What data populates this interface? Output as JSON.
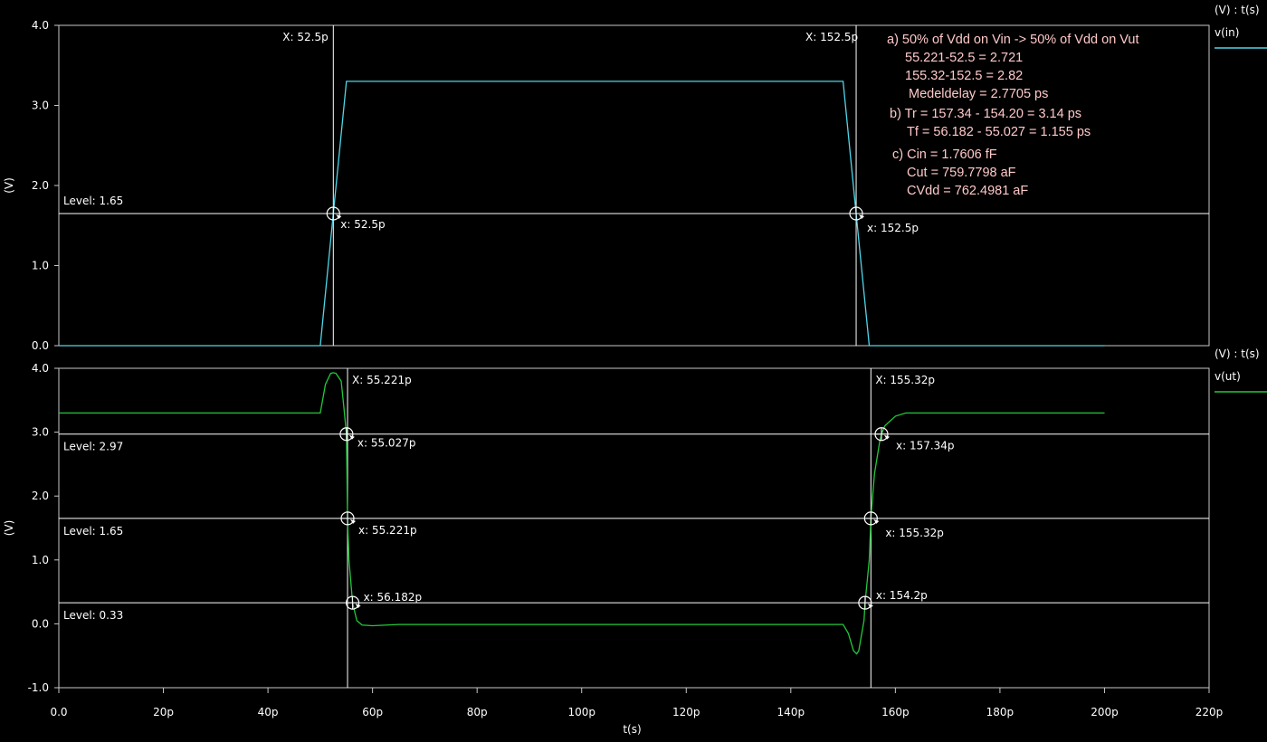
{
  "chart_data": [
    {
      "type": "line",
      "id": "top",
      "unit_label": "(V) : t(s)",
      "ylabel": "(V)",
      "ylim": [
        0.0,
        4.0
      ],
      "yticks": [
        "0.0",
        "1.0",
        "2.0",
        "3.0",
        "4.0"
      ],
      "xlim": [
        0,
        220
      ],
      "grid": false,
      "legend_position": "right",
      "series": [
        {
          "name": "v(in)",
          "color": "#4fd6e8",
          "x": [
            0,
            50,
            52.5,
            55,
            150,
            152.5,
            155,
            200
          ],
          "y": [
            0,
            0,
            1.65,
            3.3,
            3.3,
            1.65,
            0,
            0
          ]
        }
      ],
      "level_lines": [
        {
          "label": "Level: 1.65",
          "value": 1.65
        }
      ],
      "cursors": [
        {
          "x": 52.5,
          "label": "X: 52.5p"
        },
        {
          "x": 152.5,
          "label": "X: 152.5p"
        }
      ],
      "markers": [
        {
          "x": 52.5,
          "y": 1.65,
          "label": "x: 52.5p"
        },
        {
          "x": 152.5,
          "y": 1.65,
          "label": "x: 152.5p"
        }
      ],
      "annotations": [
        "a) 50% of Vdd on Vin -> 50% of Vdd on Vut",
        "55.221-52.5 = 2.721",
        "155.32-152.5 = 2.82",
        "Medeldelay = 2.7705 ps",
        "b) Tr = 157.34 - 154.20 = 3.14 ps",
        "Tf = 56.182 - 55.027 = 1.155 ps",
        "c) Cin = 1.7606 fF",
        "Cut = 759.7798 aF",
        "CVdd = 762.4981 aF"
      ]
    },
    {
      "type": "line",
      "id": "bottom",
      "unit_label": "(V) : t(s)",
      "ylabel": "(V)",
      "xlabel": "t(s)",
      "ylim": [
        -1.0,
        4.0
      ],
      "yticks": [
        "-1.0",
        "0.0",
        "1.0",
        "2.0",
        "3.0",
        "4.0"
      ],
      "xlim": [
        0,
        220
      ],
      "xticks": [
        "0.0",
        "20p",
        "40p",
        "60p",
        "80p",
        "100p",
        "120p",
        "140p",
        "160p",
        "180p",
        "200p",
        "220p"
      ],
      "grid": false,
      "legend_position": "right",
      "series": [
        {
          "name": "v(ut)",
          "color": "#22c83a",
          "x": [
            0,
            50,
            51,
            52,
            52.5,
            53,
            54,
            54.5,
            55,
            55.221,
            55.5,
            56.182,
            57,
            58,
            60,
            65,
            150,
            151,
            152,
            152.6,
            153,
            154,
            154.2,
            155,
            155.32,
            156,
            157,
            157.34,
            158,
            160,
            162,
            165,
            200
          ],
          "y": [
            3.3,
            3.3,
            3.75,
            3.92,
            3.93,
            3.92,
            3.8,
            3.4,
            2.97,
            1.65,
            1.0,
            0.33,
            0.05,
            -0.02,
            -0.03,
            -0.01,
            -0.01,
            -0.15,
            -0.42,
            -0.47,
            -0.42,
            0.05,
            0.33,
            1.0,
            1.65,
            2.35,
            2.85,
            2.97,
            3.1,
            3.25,
            3.3,
            3.3,
            3.3
          ]
        }
      ],
      "level_lines": [
        {
          "label": "Level: 2.97",
          "value": 2.97
        },
        {
          "label": "Level: 1.65",
          "value": 1.65
        },
        {
          "label": "Level: 0.33",
          "value": 0.33
        }
      ],
      "cursors": [
        {
          "x": 55.221,
          "label": "X: 55.221p"
        },
        {
          "x": 155.32,
          "label": "X: 155.32p"
        }
      ],
      "markers": [
        {
          "x": 55.027,
          "y": 2.97,
          "label": "x: 55.027p"
        },
        {
          "x": 55.221,
          "y": 1.65,
          "label": "x: 55.221p"
        },
        {
          "x": 56.182,
          "y": 0.33,
          "label": "x: 56.182p"
        },
        {
          "x": 157.34,
          "y": 2.97,
          "label": "x: 157.34p"
        },
        {
          "x": 155.32,
          "y": 1.65,
          "label": "x: 155.32p"
        },
        {
          "x": 154.2,
          "y": 0.33,
          "label": "x: 154.2p"
        }
      ]
    }
  ]
}
